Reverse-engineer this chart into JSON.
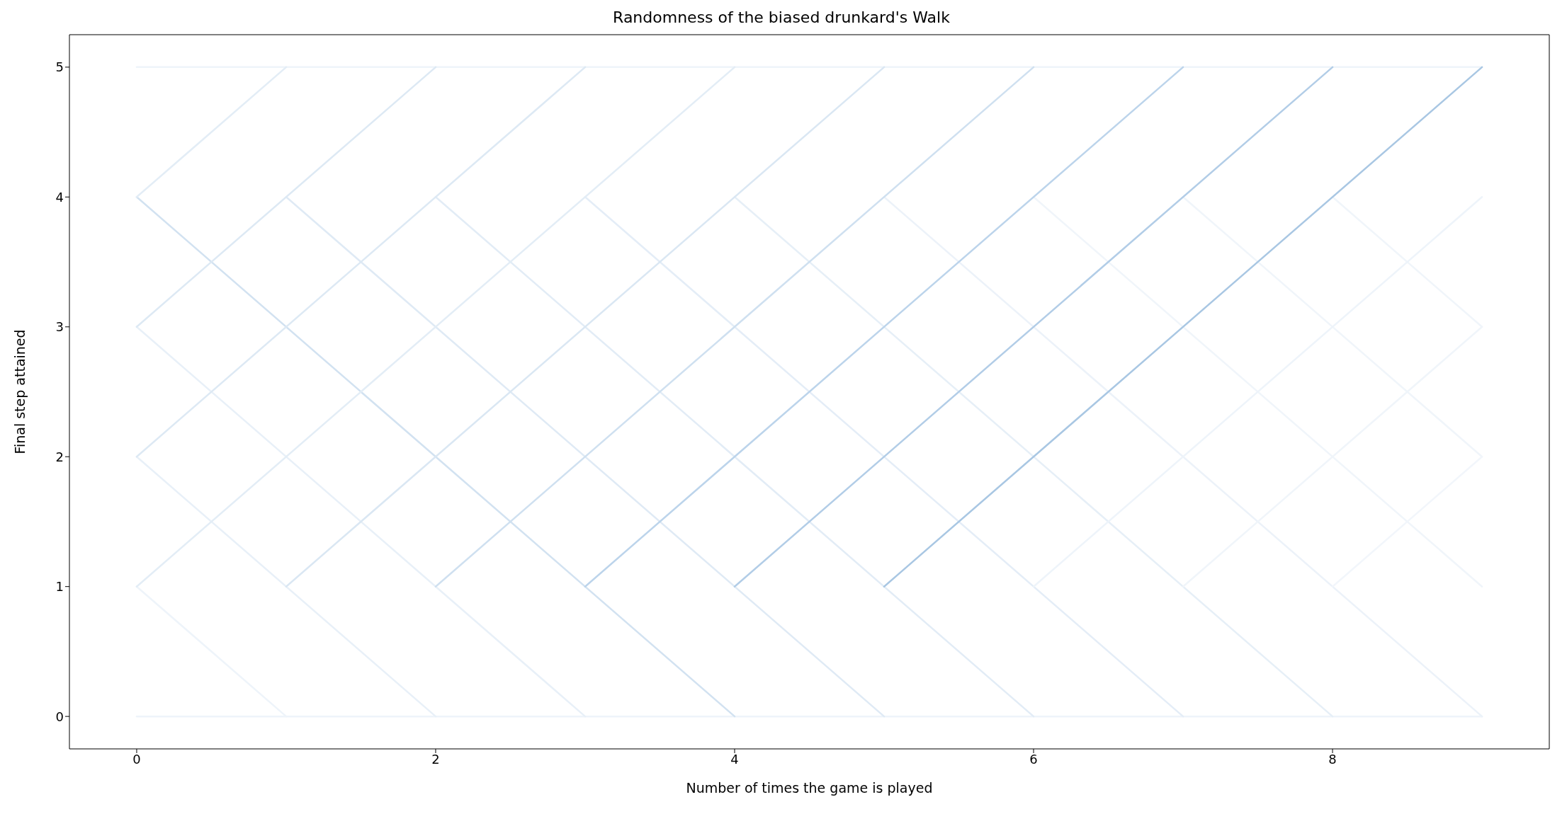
{
  "chart_data": {
    "type": "line",
    "title": "Randomness of the biased drunkard's Walk",
    "xlabel": "Number of times the game is played",
    "ylabel": "Final step attained",
    "xlim": [
      -0.45,
      9.45
    ],
    "xticks": [
      0,
      2,
      4,
      6,
      8
    ],
    "ylim": [
      -0.25,
      5.25
    ],
    "yticks": [
      0,
      1,
      2,
      3,
      4,
      5
    ],
    "grid": false,
    "marker": "none",
    "line_style": "solid",
    "series": [
      {
        "color": "#eef4fa",
        "x": [
          0,
          9
        ],
        "values": [
          0,
          0
        ]
      },
      {
        "color": "#eef4fa",
        "x": [
          0,
          9
        ],
        "values": [
          5,
          5
        ]
      },
      {
        "color": "#d2e2f1",
        "x": [
          0,
          4
        ],
        "values": [
          4,
          0
        ]
      },
      {
        "color": "#dfeaf5",
        "x": [
          1,
          5
        ],
        "values": [
          4,
          0
        ]
      },
      {
        "color": "#e2ecf6",
        "x": [
          2,
          6
        ],
        "values": [
          4,
          0
        ]
      },
      {
        "color": "#e4edf7",
        "x": [
          3,
          7
        ],
        "values": [
          4,
          0
        ]
      },
      {
        "color": "#e6eff7",
        "x": [
          4,
          8
        ],
        "values": [
          4,
          0
        ]
      },
      {
        "color": "#ecf2f9",
        "x": [
          5,
          9
        ],
        "values": [
          4,
          0
        ]
      },
      {
        "color": "#f0f5fa",
        "x": [
          6,
          9
        ],
        "values": [
          4,
          1
        ]
      },
      {
        "color": "#f0f5fa",
        "x": [
          7,
          9
        ],
        "values": [
          4,
          2
        ]
      },
      {
        "color": "#f0f5fa",
        "x": [
          8,
          9
        ],
        "values": [
          4,
          3
        ]
      },
      {
        "color": "#e8f0f8",
        "x": [
          0,
          3
        ],
        "values": [
          3,
          0
        ]
      },
      {
        "color": "#e8f0f8",
        "x": [
          0,
          2
        ],
        "values": [
          2,
          0
        ]
      },
      {
        "color": "#eef4fa",
        "x": [
          0,
          1
        ],
        "values": [
          1,
          0
        ]
      },
      {
        "color": "#e3edf6",
        "x": [
          0,
          4
        ],
        "values": [
          1,
          5
        ]
      },
      {
        "color": "#dae7f3",
        "x": [
          1,
          5
        ],
        "values": [
          1,
          5
        ]
      },
      {
        "color": "#cfe0f0",
        "x": [
          2,
          6
        ],
        "values": [
          1,
          5
        ]
      },
      {
        "color": "#bcd4eb",
        "x": [
          3,
          7
        ],
        "values": [
          1,
          5
        ]
      },
      {
        "color": "#b2cde7",
        "x": [
          4,
          8
        ],
        "values": [
          1,
          5
        ]
      },
      {
        "color": "#a9c7e3",
        "x": [
          5,
          9
        ],
        "values": [
          1,
          5
        ]
      },
      {
        "color": "#eef4fa",
        "x": [
          6,
          9
        ],
        "values": [
          1,
          4
        ]
      },
      {
        "color": "#f0f5fa",
        "x": [
          7,
          9
        ],
        "values": [
          1,
          3
        ]
      },
      {
        "color": "#f2f6fb",
        "x": [
          8,
          9
        ],
        "values": [
          1,
          2
        ]
      },
      {
        "color": "#dde9f4",
        "x": [
          0,
          3
        ],
        "values": [
          2,
          5
        ]
      },
      {
        "color": "#dde9f4",
        "x": [
          0,
          2
        ],
        "values": [
          3,
          5
        ]
      },
      {
        "color": "#e3edf6",
        "x": [
          0,
          1
        ],
        "values": [
          4,
          5
        ]
      }
    ]
  }
}
